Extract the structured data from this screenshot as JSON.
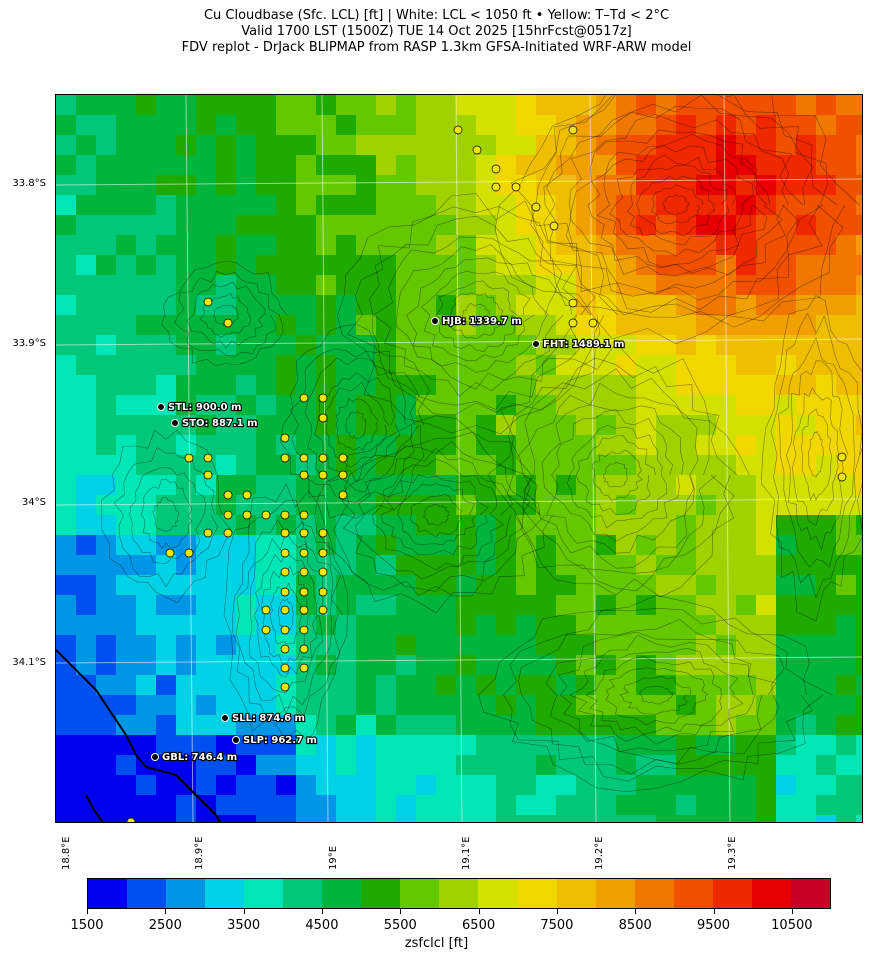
{
  "title": {
    "line1": "Cu Cloudbase (Sfc. LCL) [ft]  |  White: LCL < 1050 ft • Yellow: T–Td < 2°C",
    "line2": "Valid 1700 LST (1500Z) TUE 14 Oct 2025 [15hrFcst@0517z]",
    "line3": "FDV replot - DrJack BLIPMAP from RASP 1.3km GFSA-Initiated WRF-ARW model"
  },
  "map": {
    "lat_labels": [
      "33.8°S",
      "33.9°S",
      "34°S",
      "34.1°S"
    ],
    "lon_labels": [
      "18.8°E",
      "18.9°E",
      "19°E",
      "19.1°E",
      "19.2°E",
      "19.3°E"
    ],
    "stations": [
      {
        "label": "HJB: 1339.7 m"
      },
      {
        "label": "FHT: 1489.1 m"
      },
      {
        "label": "STL: 900.0 m"
      },
      {
        "label": "STO: 887.1 m"
      },
      {
        "label": "SLL: 874.6 m"
      },
      {
        "label": "SLP: 962.7 m"
      },
      {
        "label": "GBL: 746.4 m"
      }
    ]
  },
  "colorbar": {
    "label": "zsfclcl [ft]",
    "ticks": [
      "1500",
      "2500",
      "3500",
      "4500",
      "5500",
      "6500",
      "7500",
      "8500",
      "9500",
      "10500"
    ],
    "colors": [
      "#0000f0",
      "#0050f0",
      "#0096e6",
      "#00d2e6",
      "#00e6b4",
      "#00c878",
      "#00b43c",
      "#1eaa00",
      "#64c800",
      "#a0d200",
      "#d2e100",
      "#f0d700",
      "#f0be00",
      "#f0a000",
      "#f07800",
      "#f05000",
      "#f02800",
      "#e60000",
      "#c80028"
    ]
  }
}
